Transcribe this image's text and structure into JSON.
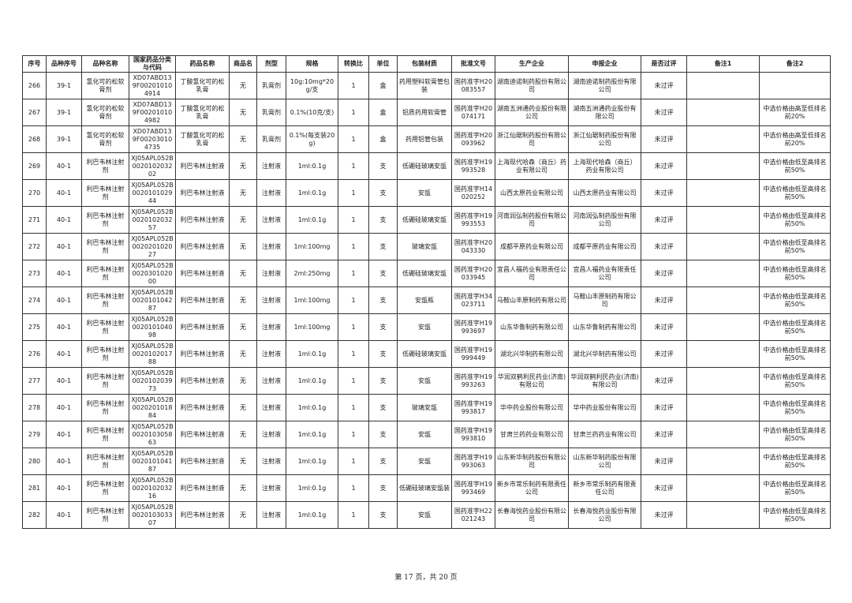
{
  "table": {
    "header": [
      "序号",
      "品种序号",
      "品种名称",
      "国家药品分类与代码",
      "药品名称",
      "商品名",
      "剂型",
      "规格",
      "转换比",
      "单位",
      "包装材质",
      "批准文号",
      "生产企业",
      "申报企业",
      "是否过评",
      "备注1",
      "备注2"
    ],
    "rows": [
      [
        "266",
        "39-1",
        "氢化可的松软膏剂",
        "XD07ABD139F002010104914",
        "丁酸氢化可的松乳膏",
        "无",
        "乳膏剂",
        "10g:10mg*20g/支",
        "1",
        "盒",
        "药用塑料软膏管包装",
        "国药准字H20083557",
        "湖南迪诺制药股份有限公司",
        "湖南迪诺制药股份有限公司",
        "未过评",
        null,
        null
      ],
      [
        "267",
        "39-1",
        "氢化可的松软膏剂",
        "XD07ABD139F002010104982",
        "丁酸氢化可的松乳膏",
        "无",
        "乳膏剂",
        "0.1%(10克/支)",
        "1",
        "盒",
        "铝质药用软膏管",
        "国药准字H20074171",
        "湖南五洲通药业股份有限公司",
        "湖南五洲通药业股份有限公司",
        "未过评",
        null,
        "中选价格由高至低排名前20%"
      ],
      [
        "268",
        "39-1",
        "氢化可的松软膏剂",
        "XD07ABD139F002030104735",
        "丁酸氢化可的松乳膏",
        "无",
        "乳膏剂",
        "0.1%(每支装20g)",
        "1",
        "盒",
        "药用铝管包装",
        "国药准字H20093962",
        "浙江仙琚制药股份有限公司",
        "浙江仙琚制药股份有限公司",
        "未过评",
        null,
        "中选价格由高至低排名前20%"
      ],
      [
        "269",
        "40-1",
        "利巴韦林注射剂",
        "XJ05APL052B002010203202",
        "利巴韦林注射液",
        "无",
        "注射液",
        "1ml:0.1g",
        "1",
        "支",
        "低硼硅玻璃安瓿",
        "国药准字H19993528",
        "上海现代哈森（商丘）药业有限公司",
        "上海现代哈森（商丘）药业有限公司",
        "未过评",
        null,
        "中选价格由低至高排名前50%"
      ],
      [
        "270",
        "40-1",
        "利巴韦林注射剂",
        "XJ05APL052B002010102944",
        "利巴韦林注射液",
        "无",
        "注射液",
        "1ml:0.1g",
        "1",
        "支",
        "安瓿",
        "国药准字H14020252",
        "山西太原药业有限公司",
        "山西太原药业有限公司",
        "未过评",
        null,
        "中选价格由低至高排名前50%"
      ],
      [
        "271",
        "40-1",
        "利巴韦林注射剂",
        "XJ05APL052B002010203257",
        "利巴韦林注射液",
        "无",
        "注射液",
        "1ml:0.1g",
        "1",
        "支",
        "低硼硅玻璃安瓿",
        "国药准字H19993553",
        "河南润弘制药股份有限公司",
        "河南润弘制药股份有限公司",
        "未过评",
        null,
        "中选价格由低至高排名前50%"
      ],
      [
        "272",
        "40-1",
        "利巴韦林注射剂",
        "XJ05APL052B002020102027",
        "利巴韦林注射液",
        "无",
        "注射液",
        "1ml:100mg",
        "1",
        "支",
        "玻璃安瓿",
        "国药准字H20043330",
        "成都平原药业有限公司",
        "成都平原药业有限公司",
        "未过评",
        null,
        "中选价格由低至高排名前50%"
      ],
      [
        "273",
        "40-1",
        "利巴韦林注射剂",
        "XJ05APL052B002030102000",
        "利巴韦林注射液",
        "无",
        "注射液",
        "2ml:250mg",
        "1",
        "支",
        "低硼硅玻璃安瓿",
        "国药准字H20033945",
        "宜昌人福药业有限责任公司",
        "宜昌人福药业有限责任公司",
        "未过评",
        null,
        "中选价格由低至高排名前50%"
      ],
      [
        "274",
        "40-1",
        "利巴韦林注射剂",
        "XJ05APL052B002010104287",
        "利巴韦林注射液",
        "无",
        "注射液",
        "1ml:100mg",
        "1",
        "支",
        "安瓿瓶",
        "国药准字H34023711",
        "马鞍山丰原制药有限公司",
        "马鞍山丰原制药有限公司",
        "未过评",
        null,
        "中选价格由低至高排名前50%"
      ],
      [
        "275",
        "40-1",
        "利巴韦林注射剂",
        "XJ05APL052B002010104098",
        "利巴韦林注射液",
        "无",
        "注射液",
        "1ml:100mg",
        "1",
        "支",
        "安瓿",
        "国药准字H19993697",
        "山东华鲁制药有限公司",
        "山东华鲁制药有限公司",
        "未过评",
        null,
        "中选价格由低至高排名前50%"
      ],
      [
        "276",
        "40-1",
        "利巴韦林注射剂",
        "XJ05APL052B002010201788",
        "利巴韦林注射液",
        "无",
        "注射液",
        "1ml:0.1g",
        "1",
        "支",
        "低硼硅玻璃安瓿",
        "国药准字H19999449",
        "湖北兴华制药有限公司",
        "湖北兴华制药有限公司",
        "未过评",
        null,
        "中选价格由低至高排名前50%"
      ],
      [
        "277",
        "40-1",
        "利巴韦林注射剂",
        "XJ05APL052B002010203973",
        "利巴韦林注射液",
        "无",
        "注射液",
        "1ml:0.1g",
        "1",
        "支",
        "安瓿",
        "国药准字H19993263",
        "华润双鹤利民药业(济南)有限公司",
        "华润双鹤利民药业(济南)有限公司",
        "未过评",
        null,
        "中选价格由低至高排名前50%"
      ],
      [
        "278",
        "40-1",
        "利巴韦林注射剂",
        "XJ05APL052B002020101884",
        "利巴韦林注射液",
        "无",
        "注射液",
        "1ml:0.1g",
        "1",
        "支",
        "玻璃安瓿",
        "国药准字H19993817",
        "华中药业股份有限公司",
        "华中药业股份有限公司",
        "未过评",
        null,
        "中选价格由低至高排名前50%"
      ],
      [
        "279",
        "40-1",
        "利巴韦林注射剂",
        "XJ05APL052B002010305863",
        "利巴韦林注射液",
        "无",
        "注射液",
        "1ml:0.1g",
        "1",
        "支",
        "安瓿",
        "国药准字H19993810",
        "甘肃兰药药业有限公司",
        "甘肃兰药药业有限公司",
        "未过评",
        null,
        "中选价格由低至高排名前50%"
      ],
      [
        "280",
        "40-1",
        "利巴韦林注射剂",
        "XJ05APL052B002010104187",
        "利巴韦林注射液",
        "无",
        "注射液",
        "1ml:0.1g",
        "1",
        "支",
        "安瓿",
        "国药准字H19993063",
        "山东新华制药股份有限公司",
        "山东新华制药股份有限公司",
        "未过评",
        null,
        "中选价格由低至高排名前50%"
      ],
      [
        "281",
        "40-1",
        "利巴韦林注射剂",
        "XJ05APL052B002010203216",
        "利巴韦林注射液",
        "无",
        "注射液",
        "1ml:0.1g",
        "1",
        "支",
        "低硼硅玻璃安瓿装",
        "国药准字H19993469",
        "新乡市常乐制药有限责任公司",
        "新乡市常乐制药有限责任公司",
        "未过评",
        null,
        "中选价格由低至高排名前50%"
      ],
      [
        "282",
        "40-1",
        "利巴韦林注射剂",
        "XJ05APL052B002010303307",
        "利巴韦林注射液",
        "无",
        "注射液",
        "1ml:0.1g",
        "1",
        "支",
        "安瓿",
        "国药准字H22021243",
        "长春海悦药业股份有限公司",
        "长春海悦药业股份有限公司",
        "未过评",
        null,
        "中选价格由低至高排名前50%"
      ]
    ]
  },
  "footer": "第 17 页，共 20 页"
}
